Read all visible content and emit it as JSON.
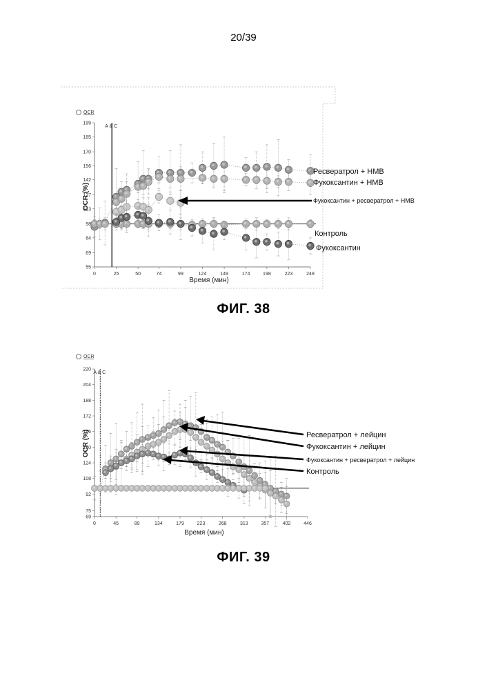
{
  "page_number": "20/39",
  "chart_data": [
    {
      "type": "scatter",
      "title": "ФИГ. 38",
      "legend": "OCR",
      "marker_label": "A & C",
      "marker_x": 20,
      "xlabel": "Время (мин)",
      "ylabel": "OCR (%)",
      "xlim": [
        0,
        248
      ],
      "ylim": [
        55,
        199
      ],
      "x_ticks": [
        0,
        25,
        50,
        74,
        99,
        124,
        149,
        174,
        198,
        223,
        248
      ],
      "y_ticks": [
        55,
        69,
        84,
        98,
        113,
        127,
        142,
        156,
        170,
        185,
        199
      ],
      "baseline": 98,
      "annotations": [
        "Ресвератрол + HMB",
        "Фукоксантин + HMB",
        "Фукоксантин + ресвератрол + HMB",
        "Контроль",
        "Фукоксантин"
      ],
      "series": [
        {
          "name": "Ресвератрол + HMB",
          "x": [
            0,
            6,
            12,
            25,
            31,
            37,
            50,
            56,
            62,
            74,
            87,
            99,
            112,
            124,
            137,
            149,
            174,
            186,
            198,
            211,
            223,
            248
          ],
          "y": [
            95,
            98,
            99,
            125,
            130,
            132,
            138,
            143,
            143,
            149,
            149,
            149,
            149,
            154,
            156,
            157,
            154,
            154,
            155,
            154,
            152,
            151
          ]
        },
        {
          "name": "Фукоксантин + HMB",
          "x": [
            25,
            31,
            37,
            50,
            56,
            62,
            74,
            87,
            99,
            124,
            137,
            149,
            174,
            186,
            198,
            211,
            223,
            248
          ],
          "y": [
            120,
            123,
            128,
            135,
            136,
            140,
            145,
            143,
            143,
            144,
            143,
            143,
            142,
            142,
            141,
            140,
            140,
            139
          ]
        },
        {
          "name": "Фукоксантин + ресвератрол + HMB",
          "x": [
            25,
            31,
            37,
            50,
            56,
            62,
            74,
            87,
            99
          ],
          "y": [
            110,
            112,
            115,
            116,
            115,
            112,
            125,
            121,
            119
          ]
        },
        {
          "name": "Контроль",
          "x": [
            0,
            6,
            12,
            25,
            31,
            37,
            50,
            56,
            62,
            74,
            87,
            99,
            112,
            124,
            137,
            149,
            174,
            186,
            198,
            211,
            223,
            248
          ],
          "y": [
            98,
            98,
            98,
            98,
            98,
            98,
            98,
            98,
            98,
            98,
            98,
            98,
            97,
            98,
            98,
            97,
            98,
            98,
            98,
            98,
            98,
            98
          ]
        },
        {
          "name": "Фукоксантин",
          "x": [
            25,
            31,
            37,
            50,
            56,
            62,
            74,
            87,
            99,
            112,
            124,
            137,
            149,
            174,
            186,
            198,
            211,
            223,
            248
          ],
          "y": [
            100,
            104,
            105,
            107,
            106,
            101,
            99,
            100,
            98,
            94,
            91,
            88,
            90,
            84,
            80,
            80,
            78,
            78,
            76
          ]
        }
      ]
    },
    {
      "type": "scatter",
      "title": "ФИГ. 39",
      "legend": "OCR",
      "marker_label": "A & C",
      "marker_x": 12,
      "xlabel": "Время (мин)",
      "ylabel": "OCR (%)",
      "xlim": [
        0,
        446
      ],
      "ylim": [
        69,
        220
      ],
      "x_ticks": [
        0,
        45,
        89,
        134,
        179,
        223,
        268,
        313,
        357,
        402,
        446
      ],
      "y_ticks": [
        69,
        75,
        92,
        108,
        124,
        140,
        156,
        172,
        188,
        204,
        220
      ],
      "baseline": 98,
      "annotations": [
        "Ресвератрол + лейцин",
        "Фукоксантин + лейцин",
        "Фукоксантин + ресвератрол + лейцин",
        "Контроль"
      ],
      "series": [
        {
          "name": "Ресвератрол + лейцин",
          "x": [
            0,
            12,
            23,
            34,
            45,
            56,
            67,
            78,
            89,
            100,
            112,
            123,
            134,
            145,
            156,
            168,
            179,
            190,
            201,
            212,
            223,
            235,
            246,
            257,
            268,
            279,
            290,
            302,
            313,
            324,
            335,
            346,
            357,
            368,
            379,
            391,
            402
          ],
          "y": [
            98,
            98,
            118,
            124,
            128,
            133,
            138,
            141,
            145,
            148,
            150,
            152,
            154,
            158,
            162,
            165,
            166,
            164,
            162,
            160,
            156,
            150,
            147,
            143,
            140,
            135,
            131,
            125,
            120,
            116,
            111,
            106,
            102,
            98,
            95,
            92,
            90
          ]
        },
        {
          "name": "Фукоксантин + лейцин",
          "x": [
            23,
            34,
            45,
            56,
            67,
            78,
            89,
            100,
            112,
            123,
            134,
            145,
            156,
            168,
            179,
            190,
            201,
            212,
            223,
            235,
            246,
            257,
            268,
            279,
            290,
            302,
            313,
            324,
            335,
            346,
            357,
            368,
            379,
            391,
            402
          ],
          "y": [
            116,
            118,
            120,
            124,
            128,
            132,
            135,
            138,
            141,
            143,
            145,
            148,
            152,
            156,
            158,
            158,
            155,
            150,
            145,
            141,
            137,
            133,
            128,
            124,
            120,
            117,
            112,
            108,
            104,
            100,
            96,
            93,
            90,
            86,
            82
          ]
        },
        {
          "name": "Фукоксантин + ресвератрол + лейцин",
          "x": [
            23,
            34,
            45,
            56,
            67,
            78,
            89,
            100,
            112,
            123,
            134,
            145,
            156,
            168,
            179,
            190,
            201,
            212,
            223,
            235,
            246,
            257,
            268,
            279,
            290,
            302,
            313
          ],
          "y": [
            114,
            118,
            121,
            124,
            126,
            128,
            131,
            133,
            134,
            133,
            131,
            130,
            128,
            132,
            134,
            133,
            129,
            124,
            120,
            117,
            114,
            110,
            107,
            104,
            101,
            98,
            96
          ]
        },
        {
          "name": "Контроль",
          "x": [
            0,
            12,
            23,
            34,
            45,
            56,
            67,
            78,
            89,
            100,
            112,
            123,
            134,
            145,
            156,
            168,
            179,
            190,
            201,
            212,
            223,
            235,
            246,
            257,
            268,
            279,
            290,
            302,
            313,
            324,
            335,
            346,
            357
          ],
          "y": [
            98,
            98,
            98,
            98,
            98,
            98,
            98,
            98,
            98,
            98,
            98,
            98,
            98,
            98,
            98,
            98,
            98,
            98,
            98,
            98,
            98,
            98,
            98,
            98,
            98,
            98,
            98,
            98,
            98,
            98,
            98,
            98,
            98
          ]
        }
      ]
    }
  ]
}
